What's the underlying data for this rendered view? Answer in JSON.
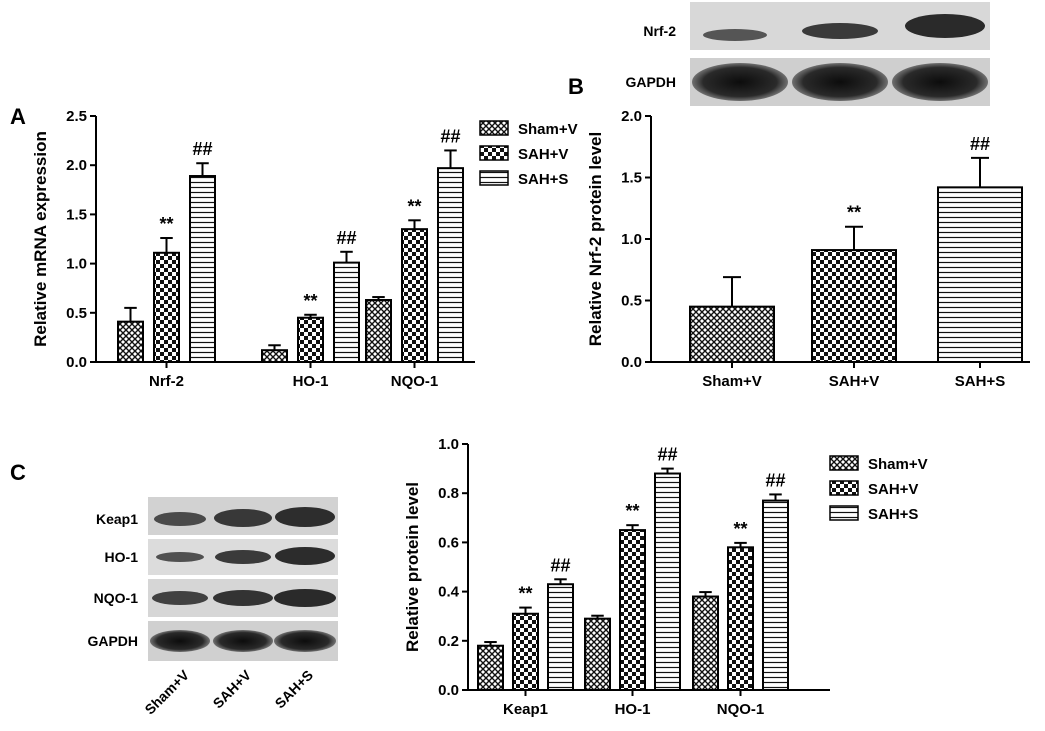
{
  "panels": {
    "a": {
      "letter": "A"
    },
    "b": {
      "letter": "B"
    },
    "c": {
      "letter": "C"
    }
  },
  "blots": {
    "b": {
      "rows": [
        "Nrf-2",
        "GAPDH"
      ]
    },
    "c": {
      "rows": [
        "Keap1",
        "HO-1",
        "NQO-1",
        "GAPDH"
      ],
      "lanes": [
        "Sham+V",
        "SAH+V",
        "SAH+S"
      ]
    }
  },
  "patterns": {
    "Sham+V": "crosshatch",
    "SAH+V": "checker",
    "SAH+S": "horizontal-lines"
  },
  "chart_data": [
    {
      "panel": "A",
      "type": "bar",
      "ylabel": "Relative mRNA expression",
      "xlabel": "",
      "ylim": [
        0,
        2.5
      ],
      "yticks": [
        "0.0",
        "0.5",
        "1.0",
        "1.5",
        "2.0",
        "2.5"
      ],
      "categories": [
        "Nrf-2",
        "HO-1",
        "NQO-1"
      ],
      "legend_position": "top-right",
      "series": [
        {
          "name": "Sham+V",
          "values": [
            0.41,
            0.12,
            0.63
          ],
          "errors": [
            0.14,
            0.05,
            0.03
          ],
          "labels": [
            "",
            "",
            ""
          ]
        },
        {
          "name": "SAH+V",
          "values": [
            1.11,
            0.45,
            1.35
          ],
          "errors": [
            0.15,
            0.03,
            0.09
          ],
          "labels": [
            "**",
            "**",
            "**"
          ]
        },
        {
          "name": "SAH+S",
          "values": [
            1.89,
            1.01,
            1.97
          ],
          "errors": [
            0.13,
            0.11,
            0.18
          ],
          "labels": [
            "##",
            "##",
            "##"
          ]
        }
      ]
    },
    {
      "panel": "B",
      "type": "bar",
      "ylabel": "Relative Nrf-2 protein level",
      "xlabel": "",
      "ylim": [
        0,
        2.0
      ],
      "yticks": [
        "0.0",
        "0.5",
        "1.0",
        "1.5",
        "2.0"
      ],
      "categories": [
        "Sham+V",
        "SAH+V",
        "SAH+S"
      ],
      "series": [
        {
          "name": "",
          "values": [
            0.45,
            0.91,
            1.42
          ],
          "errors": [
            0.24,
            0.19,
            0.24
          ],
          "labels": [
            "",
            "**",
            "##"
          ]
        }
      ]
    },
    {
      "panel": "C",
      "type": "bar",
      "ylabel": "Relative protein level",
      "xlabel": "",
      "ylim": [
        0,
        1.0
      ],
      "yticks": [
        "0.0",
        "0.2",
        "0.4",
        "0.6",
        "0.8",
        "1.0"
      ],
      "categories": [
        "Keap1",
        "HO-1",
        "NQO-1"
      ],
      "legend_position": "top-right",
      "series": [
        {
          "name": "Sham+V",
          "values": [
            0.18,
            0.29,
            0.38
          ],
          "errors": [
            0.015,
            0.012,
            0.018
          ],
          "labels": [
            "",
            "",
            ""
          ]
        },
        {
          "name": "SAH+V",
          "values": [
            0.31,
            0.65,
            0.58
          ],
          "errors": [
            0.025,
            0.02,
            0.018
          ],
          "labels": [
            "**",
            "**",
            "**"
          ]
        },
        {
          "name": "SAH+S",
          "values": [
            0.43,
            0.88,
            0.77
          ],
          "errors": [
            0.02,
            0.02,
            0.025
          ],
          "labels": [
            "##",
            "##",
            "##"
          ]
        }
      ]
    }
  ]
}
